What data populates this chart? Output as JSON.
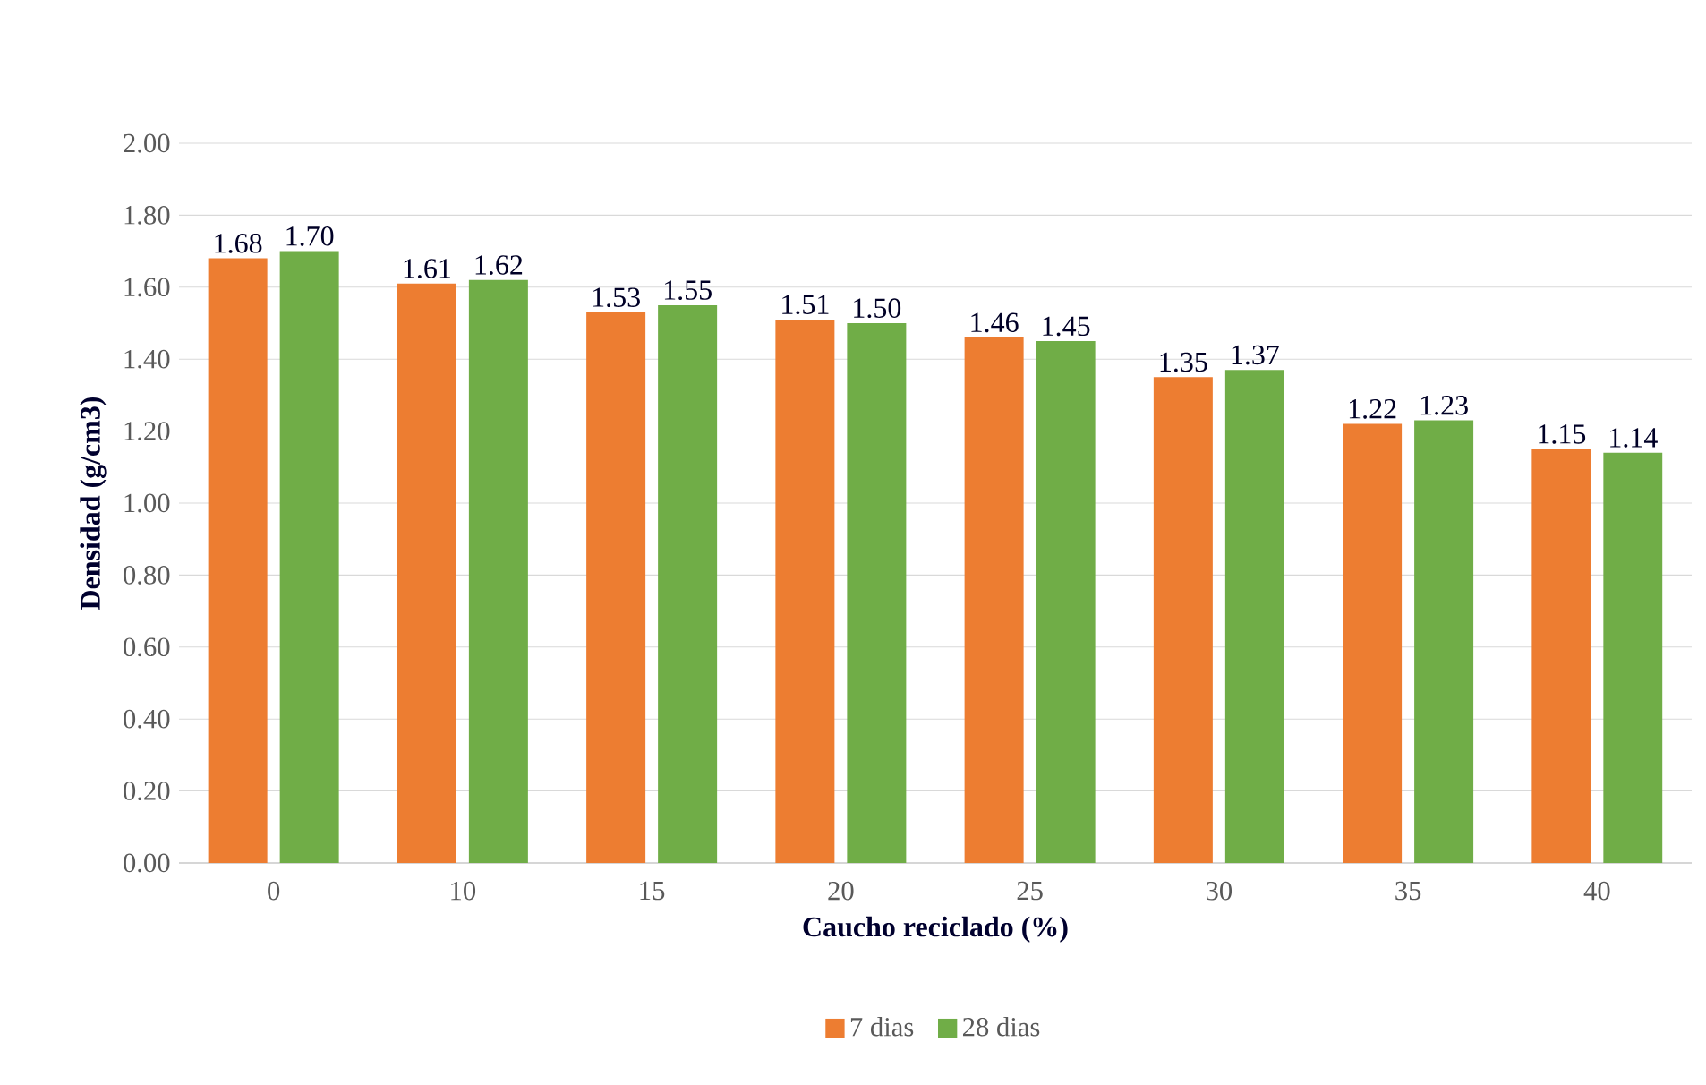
{
  "chart_data": {
    "type": "bar",
    "xlabel": "Caucho reciclado (%)",
    "ylabel": "Densidad (g/cm3)",
    "categories": [
      "0",
      "10",
      "15",
      "20",
      "25",
      "30",
      "35",
      "40"
    ],
    "series": [
      {
        "name": "7 dias",
        "color": "#ed7d31",
        "values": [
          1.68,
          1.61,
          1.53,
          1.51,
          1.46,
          1.35,
          1.22,
          1.15
        ],
        "value_labels": [
          "1.68",
          "1.61",
          "1.53",
          "1.51",
          "1.46",
          "1.35",
          "1.22",
          "1.15"
        ]
      },
      {
        "name": "28 dias",
        "color": "#70ad47",
        "values": [
          1.7,
          1.62,
          1.55,
          1.5,
          1.45,
          1.37,
          1.23,
          1.14
        ],
        "value_labels": [
          "1.70",
          "1.62",
          "1.55",
          "1.50",
          "1.45",
          "1.37",
          "1.23",
          "1.14"
        ]
      }
    ],
    "ylim": [
      0,
      2
    ],
    "yticks": [
      {
        "value": 0,
        "label": "0.00"
      },
      {
        "value": 0.2,
        "label": "0.20"
      },
      {
        "value": 0.4,
        "label": "0.40"
      },
      {
        "value": 0.6,
        "label": "0.60"
      },
      {
        "value": 0.8,
        "label": "0.80"
      },
      {
        "value": 1.0,
        "label": "1.00"
      },
      {
        "value": 1.2,
        "label": "1.20"
      },
      {
        "value": 1.4,
        "label": "1.40"
      },
      {
        "value": 1.6,
        "label": "1.60"
      },
      {
        "value": 1.8,
        "label": "1.80"
      },
      {
        "value": 2.0,
        "label": "2.00"
      }
    ],
    "grid": "y",
    "legend": "bottom"
  }
}
